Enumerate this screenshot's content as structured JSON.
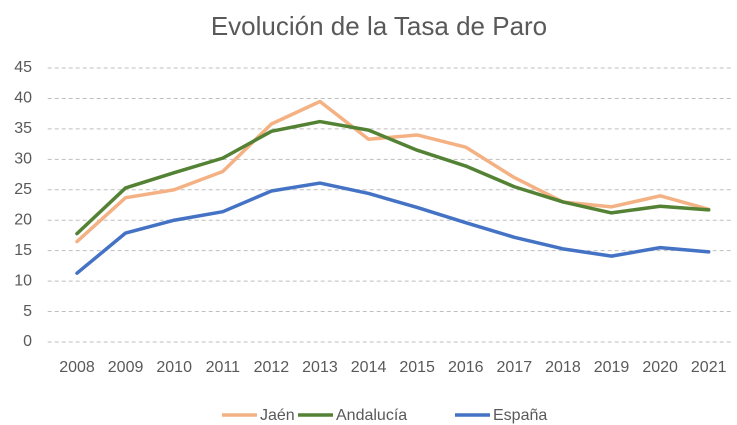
{
  "chart_data": {
    "type": "line",
    "title": "Evolución de la Tasa de Paro",
    "categories": [
      "2008",
      "2009",
      "2010",
      "2011",
      "2012",
      "2013",
      "2014",
      "2015",
      "2016",
      "2017",
      "2018",
      "2019",
      "2020",
      "2021"
    ],
    "series": [
      {
        "name": "Jaén",
        "color": "#f4b183",
        "values": [
          16.5,
          23.7,
          25.0,
          28.0,
          35.8,
          39.5,
          33.3,
          34.0,
          32.0,
          27.0,
          23.0,
          22.2,
          24.0,
          21.8
        ]
      },
      {
        "name": "Andalucía",
        "color": "#548235",
        "values": [
          17.8,
          25.3,
          27.8,
          30.2,
          34.6,
          36.2,
          34.8,
          31.5,
          28.9,
          25.5,
          23.0,
          21.2,
          22.3,
          21.7
        ]
      },
      {
        "name": "España",
        "color": "#4472c4",
        "values": [
          11.3,
          17.9,
          20.0,
          21.4,
          24.8,
          26.1,
          24.4,
          22.1,
          19.6,
          17.2,
          15.3,
          14.1,
          15.5,
          14.8
        ]
      }
    ],
    "ylim": [
      0,
      45
    ],
    "yticks": [
      0,
      5,
      10,
      15,
      20,
      25,
      30,
      35,
      40,
      45
    ],
    "grid": true,
    "legend": "bottom"
  }
}
